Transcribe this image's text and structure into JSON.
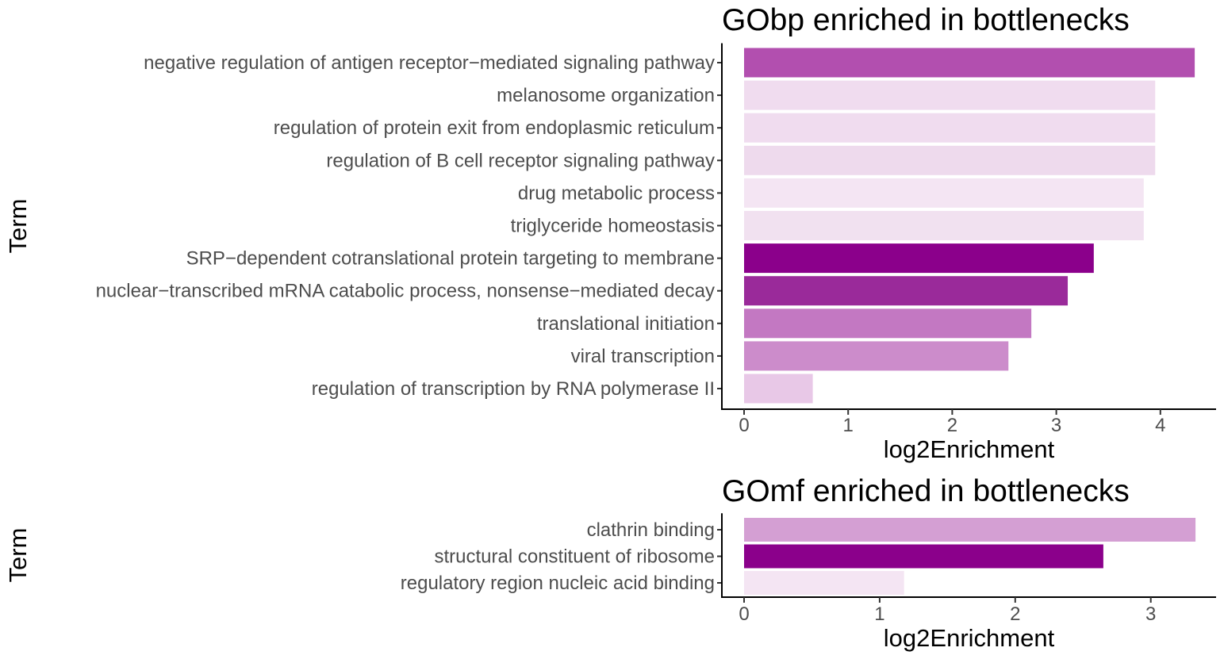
{
  "chart_data": [
    {
      "type": "bar",
      "orientation": "horizontal",
      "title": "GObp enriched in bottlenecks",
      "xlabel": "log2Enrichment",
      "ylabel": "Term",
      "xlim": [
        0,
        4.55
      ],
      "xticks": [
        0,
        1,
        2,
        3,
        4
      ],
      "grid": false,
      "legend": "none",
      "categories": [
        "negative regulation of antigen receptor−mediated signaling pathway",
        "melanosome organization",
        "regulation of protein exit from endoplasmic reticulum",
        "regulation of B cell receptor signaling pathway",
        "drug metabolic process",
        "triglyceride homeostasis",
        "SRP−dependent cotranslational protein targeting to membrane",
        "nuclear−transcribed mRNA catabolic process, nonsense−mediated decay",
        "translational initiation",
        "viral transcription",
        "regulation of transcription by RNA polymerase II"
      ],
      "values": [
        4.33,
        3.95,
        3.95,
        3.95,
        3.84,
        3.84,
        3.36,
        3.11,
        2.76,
        2.54,
        0.66
      ],
      "colors": [
        "#b24faf",
        "#f0dcef",
        "#f0dcef",
        "#eedaed",
        "#f4e5f3",
        "#f1e1f0",
        "#8b008b",
        "#9a2a9a",
        "#c378c2",
        "#cc8ccb",
        "#e8c8e7"
      ]
    },
    {
      "type": "bar",
      "orientation": "horizontal",
      "title": "GOmf enriched in bottlenecks",
      "xlabel": "log2Enrichment",
      "ylabel": "Term",
      "xlim": [
        0,
        3.5
      ],
      "xticks": [
        0,
        1,
        2,
        3
      ],
      "grid": false,
      "legend": "none",
      "categories": [
        "clathrin binding",
        "structural constituent of ribosome",
        "regulatory region nucleic acid binding"
      ],
      "values": [
        3.33,
        2.65,
        1.18
      ],
      "colors": [
        "#d49fd3",
        "#8b008b",
        "#f4e5f3"
      ]
    }
  ]
}
